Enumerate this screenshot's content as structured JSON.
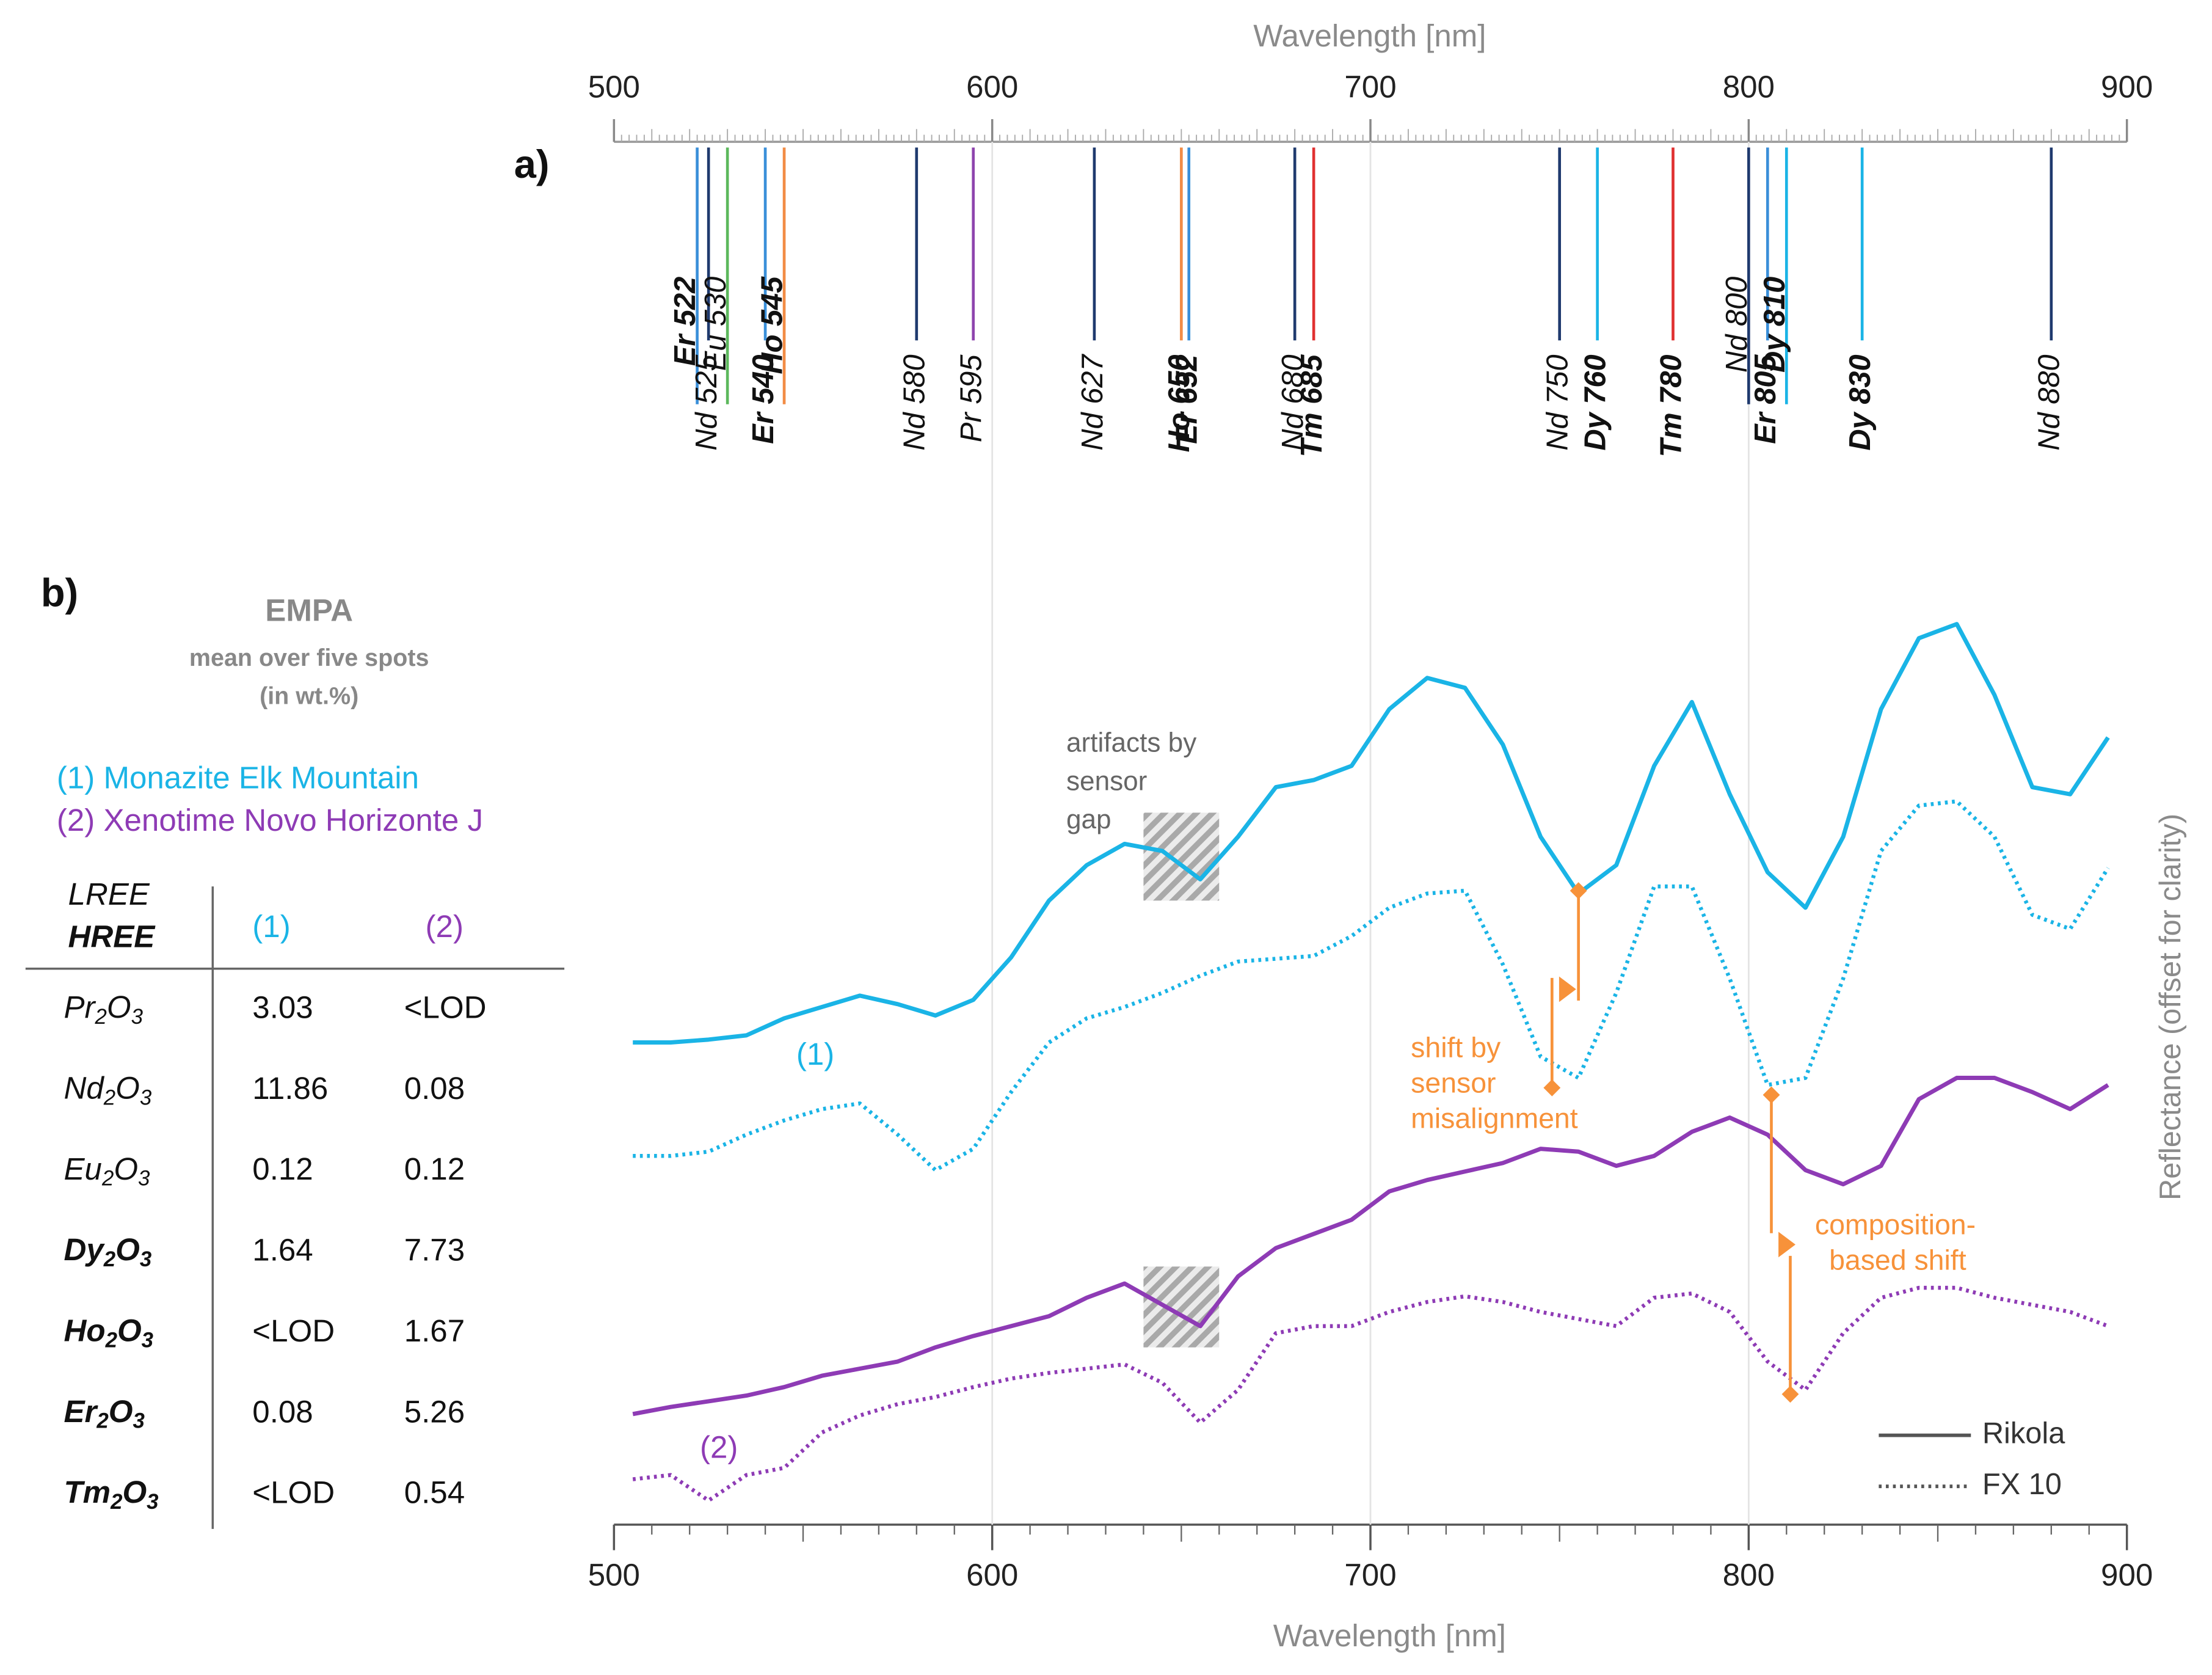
{
  "chart_data": {
    "type": "line",
    "panel_a": "a)",
    "panel_b": "b)",
    "xlabel": "Wavelength [nm]",
    "ylabel": "Reflectance (offset for clarity)",
    "xlim": [
      500,
      900
    ],
    "xticks": [
      500,
      600,
      700,
      800,
      900
    ],
    "ylim": [
      0,
      70
    ],
    "grid": true,
    "x": [
      505,
      515,
      525,
      535,
      545,
      555,
      565,
      575,
      585,
      595,
      605,
      615,
      625,
      635,
      645,
      655,
      665,
      675,
      685,
      695,
      705,
      715,
      725,
      735,
      745,
      755,
      765,
      775,
      785,
      795,
      805,
      815,
      825,
      835,
      845,
      855,
      865,
      875,
      885,
      895
    ],
    "series": [
      {
        "color": "#1ab4e6",
        "dash": "solid",
        "values": [
          34,
          34,
          34.2,
          34.5,
          35.7,
          36.5,
          37.3,
          36.7,
          35.9,
          37,
          40,
          44,
          46.5,
          48,
          47.5,
          45.5,
          48.5,
          52,
          52.5,
          53.5,
          57.5,
          59.7,
          59,
          55,
          48.5,
          44.5,
          46.5,
          53.5,
          58,
          51.5,
          46,
          43.5,
          48.5,
          57.5,
          62.5,
          63.5,
          58.5,
          52,
          51.5,
          55.5
        ]
      },
      {
        "color": "#1ab4e6",
        "dash": "dotted",
        "values": [
          26,
          26,
          26.3,
          27.5,
          28.5,
          29.3,
          29.7,
          27.5,
          25,
          26.5,
          30.5,
          34,
          35.7,
          36.5,
          37.5,
          38.7,
          39.7,
          39.9,
          40.1,
          41.5,
          43.5,
          44.5,
          44.7,
          39.5,
          33,
          31.5,
          37.5,
          45,
          45,
          38.5,
          31,
          31.5,
          38.5,
          47.5,
          50.7,
          51,
          48.5,
          43,
          42,
          46.3
        ]
      },
      {
        "color": "#8e3bb5",
        "dash": "solid",
        "values": [
          7.8,
          8.3,
          8.7,
          9.1,
          9.7,
          10.5,
          11,
          11.5,
          12.5,
          13.3,
          14,
          14.7,
          16,
          17,
          15.5,
          14,
          17.5,
          19.5,
          20.5,
          21.5,
          23.5,
          24.3,
          24.9,
          25.5,
          26.5,
          26.3,
          25.3,
          26,
          27.7,
          28.7,
          27.5,
          25,
          24,
          25.3,
          30,
          31.5,
          31.5,
          30.5,
          29.3,
          31
        ]
      },
      {
        "color": "#8e3bb5",
        "dash": "dotted",
        "values": [
          3.2,
          3.5,
          1.7,
          3.5,
          4,
          6.5,
          7.7,
          8.5,
          9,
          9.7,
          10.3,
          10.7,
          11,
          11.3,
          10,
          7.2,
          9.5,
          13.5,
          14,
          14,
          15,
          15.7,
          16.1,
          15.7,
          15,
          14.5,
          14,
          16,
          16.3,
          15,
          11.5,
          9.5,
          13.5,
          16,
          16.7,
          16.7,
          16,
          15.5,
          15,
          14
        ]
      }
    ],
    "legend": [
      {
        "name": "Rikola",
        "dash": "solid"
      },
      {
        "name": "FX 10",
        "dash": "dotted"
      }
    ],
    "curve_labels": [
      {
        "text": "(1)",
        "color": "#1ab4e6"
      },
      {
        "text": "(2)",
        "color": "#8e3bb5"
      }
    ],
    "sensor_gap": [
      640,
      660
    ],
    "gap_note": [
      "artifacts by",
      "sensor",
      "gap"
    ],
    "shifts": [
      {
        "label": [
          "shift by",
          "sensor",
          "misalignment"
        ],
        "from": {
          "x": 748,
          "y": 30.8
        },
        "to": {
          "x": 755,
          "y": 44.7
        }
      },
      {
        "label": [
          "composition-",
          "based shift"
        ],
        "from": {
          "x": 806,
          "y": 30.3
        },
        "to": {
          "x": 811,
          "y": 9.2
        }
      }
    ],
    "shift_color": "#f7923a",
    "lines": [
      {
        "label": "Er 522",
        "x": 522,
        "color": "#3a8fd9",
        "bold": true,
        "row": 1
      },
      {
        "label": "Nd 525",
        "x": 525,
        "color": "#1f3a6e",
        "bold": false,
        "row": 0
      },
      {
        "label": "Eu 530",
        "x": 530,
        "color": "#5cb85c",
        "bold": false,
        "row": 1
      },
      {
        "label": "Er 540",
        "x": 540,
        "color": "#3a8fd9",
        "bold": true,
        "row": 0
      },
      {
        "label": "Ho 545",
        "x": 545,
        "color": "#f28c45",
        "bold": true,
        "row": 1
      },
      {
        "label": "Nd 580",
        "x": 580,
        "color": "#1f3a6e",
        "bold": false,
        "row": 0
      },
      {
        "label": "Pr 595",
        "x": 595,
        "color": "#8e44ad",
        "bold": false,
        "row": 0
      },
      {
        "label": "Nd 627",
        "x": 627,
        "color": "#1f3a6e",
        "bold": false,
        "row": 0
      },
      {
        "label": "Ho 650",
        "x": 650,
        "color": "#f28c45",
        "bold": true,
        "row": 0
      },
      {
        "label": "Er 652",
        "x": 652,
        "color": "#3a8fd9",
        "bold": true,
        "row": 0
      },
      {
        "label": "Nd 680",
        "x": 680,
        "color": "#1f3a6e",
        "bold": false,
        "row": 0
      },
      {
        "label": "Tm 685",
        "x": 685,
        "color": "#e03030",
        "bold": true,
        "row": 0
      },
      {
        "label": "Nd 750",
        "x": 750,
        "color": "#1f3a6e",
        "bold": false,
        "row": 0
      },
      {
        "label": "Dy 760",
        "x": 760,
        "color": "#1ab4e6",
        "bold": true,
        "row": 0
      },
      {
        "label": "Tm 780",
        "x": 780,
        "color": "#e03030",
        "bold": true,
        "row": 0
      },
      {
        "label": "Nd 800",
        "x": 800,
        "color": "#1f3a6e",
        "bold": false,
        "row": 1
      },
      {
        "label": "Er 805",
        "x": 805,
        "color": "#3a8fd9",
        "bold": true,
        "row": 0
      },
      {
        "label": "Dy 810",
        "x": 810,
        "color": "#1ab4e6",
        "bold": true,
        "row": 1
      },
      {
        "label": "Dy 830",
        "x": 830,
        "color": "#1ab4e6",
        "bold": true,
        "row": 0
      },
      {
        "label": "Nd 880",
        "x": 880,
        "color": "#1f3a6e",
        "bold": false,
        "row": 0
      }
    ]
  },
  "table": {
    "title": "EMPA",
    "subtitle": [
      "mean over five spots",
      "(in wt.%)"
    ],
    "samples": [
      {
        "text": "(1) Monazite Elk Mountain",
        "color": "#1ab4e6"
      },
      {
        "text": "(2) Xenotime Novo Horizonte J",
        "color": "#8e3bb5"
      }
    ],
    "group": [
      "LREE",
      "HREE"
    ],
    "columns": [
      "(1)",
      "(2)"
    ],
    "rows": [
      {
        "oxide": [
          "Pr",
          "2",
          "O",
          "3"
        ],
        "bold": false,
        "values": [
          3.03,
          "<LOD"
        ]
      },
      {
        "oxide": [
          "Nd",
          "2",
          "O",
          "3"
        ],
        "bold": false,
        "values": [
          11.86,
          0.08
        ]
      },
      {
        "oxide": [
          "Eu",
          "2",
          "O",
          "3"
        ],
        "bold": false,
        "values": [
          0.12,
          0.12
        ]
      },
      {
        "oxide": [
          "Dy",
          "2",
          "O",
          "3"
        ],
        "bold": true,
        "values": [
          1.64,
          7.73
        ]
      },
      {
        "oxide": [
          "Ho",
          "2",
          "O",
          "3"
        ],
        "bold": true,
        "values": [
          "<LOD",
          1.67
        ]
      },
      {
        "oxide": [
          "Er",
          "2",
          "O",
          "3"
        ],
        "bold": true,
        "values": [
          0.08,
          5.26
        ]
      },
      {
        "oxide": [
          "Tm",
          "2",
          "O",
          "3"
        ],
        "bold": true,
        "values": [
          "<LOD",
          0.54
        ]
      }
    ]
  }
}
